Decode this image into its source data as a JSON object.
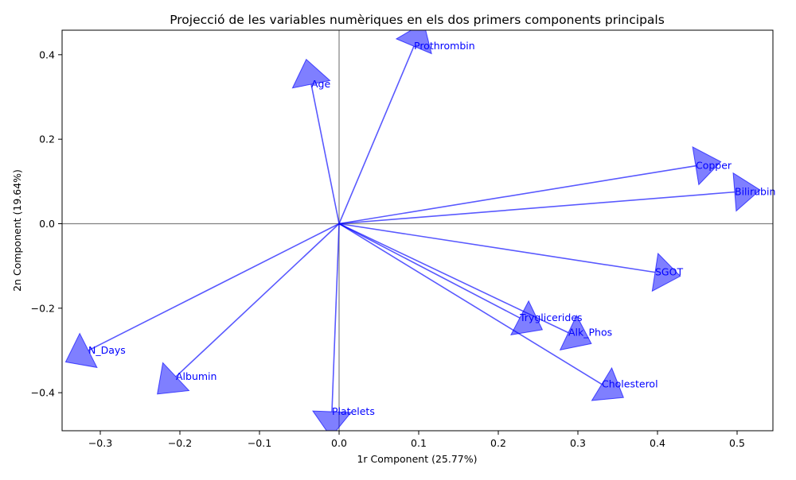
{
  "chart_data": {
    "type": "scatter",
    "subtype": "pca-loadings-biplot",
    "title": "Projecció de les variables numèriques en els dos primers components principals",
    "xlabel": "1r Component (25.77%)",
    "ylabel": "2n Component (19.64%)",
    "xlim": [
      -0.348,
      0.545
    ],
    "ylim": [
      -0.49,
      0.458
    ],
    "xticks": [
      -0.3,
      -0.2,
      -0.1,
      0.0,
      0.1,
      0.2,
      0.3,
      0.4,
      0.5
    ],
    "yticks": [
      -0.4,
      -0.2,
      0.0,
      0.2,
      0.4
    ],
    "xtick_labels": [
      "−0.3",
      "−0.2",
      "−0.1",
      "0.0",
      "0.1",
      "0.2",
      "0.3",
      "0.4",
      "0.5"
    ],
    "ytick_labels": [
      "−0.4",
      "−0.2",
      "0.0",
      "0.2",
      "0.4"
    ],
    "grid": false,
    "reference_lines": {
      "x": 0,
      "y": 0,
      "color": "#808080"
    },
    "arrow_color": "#0000ff",
    "label_color": "#0000ff",
    "arrows": [
      {
        "name": "N_Days",
        "x": -0.315,
        "y": -0.3
      },
      {
        "name": "Age",
        "x": -0.035,
        "y": 0.33
      },
      {
        "name": "Bilirubin",
        "x": 0.497,
        "y": 0.075
      },
      {
        "name": "Cholesterol",
        "x": 0.33,
        "y": -0.38
      },
      {
        "name": "Albumin",
        "x": -0.205,
        "y": -0.362
      },
      {
        "name": "Copper",
        "x": 0.448,
        "y": 0.137
      },
      {
        "name": "Alk_Phos",
        "x": 0.288,
        "y": -0.258
      },
      {
        "name": "SGOT",
        "x": 0.397,
        "y": -0.115
      },
      {
        "name": "Tryglicerides",
        "x": 0.227,
        "y": -0.223
      },
      {
        "name": "Platelets",
        "x": -0.009,
        "y": -0.445
      },
      {
        "name": "Prothrombin",
        "x": 0.094,
        "y": 0.42
      }
    ]
  }
}
